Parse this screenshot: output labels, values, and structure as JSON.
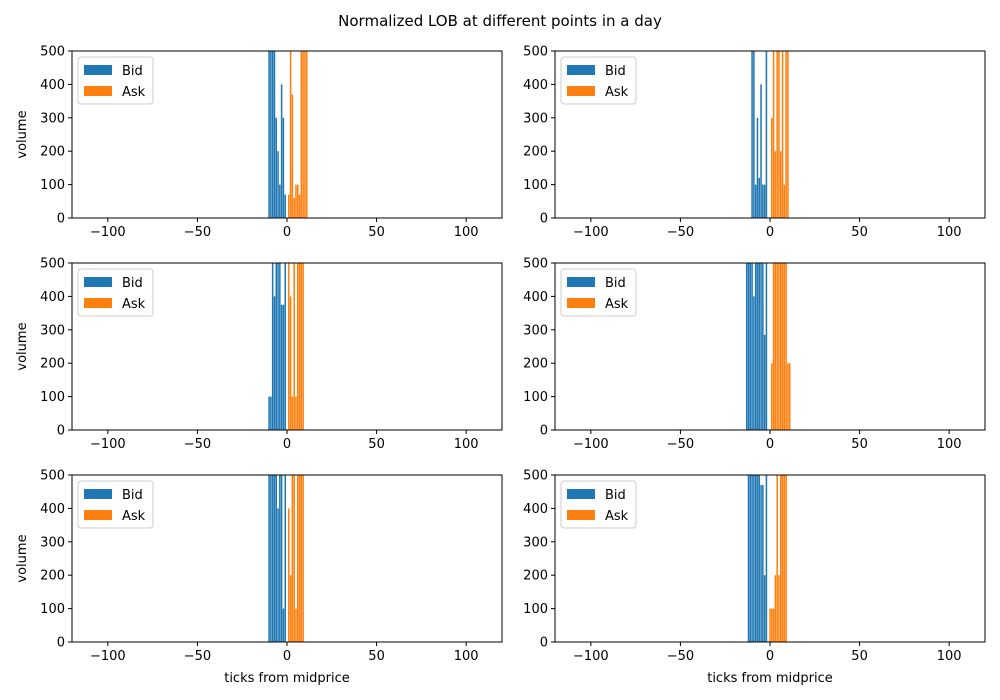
{
  "suptitle": "Normalized LOB at different points in a day",
  "colors": {
    "bid": "#1f77b4",
    "ask": "#ff7f0e"
  },
  "chart_data": [
    {
      "type": "bar",
      "xlabel": "",
      "ylabel": "volume",
      "xlim": [
        -120,
        120
      ],
      "ylim": [
        0,
        500
      ],
      "xticks": [
        -100,
        -50,
        0,
        50,
        100
      ],
      "yticks": [
        0,
        100,
        200,
        300,
        400,
        500
      ],
      "legend": "top-left",
      "series": [
        {
          "name": "Bid",
          "x": [
            -10,
            -9,
            -8,
            -7,
            -6,
            -5,
            -4,
            -3,
            -2,
            -1
          ],
          "values": [
            500,
            500,
            500,
            500,
            300,
            200,
            100,
            400,
            300,
            70
          ]
        },
        {
          "name": "Ask",
          "x": [
            1,
            2,
            3,
            4,
            5,
            6,
            7,
            8,
            9,
            10,
            11
          ],
          "values": [
            70,
            500,
            370,
            60,
            100,
            100,
            70,
            500,
            500,
            500,
            500
          ]
        }
      ]
    },
    {
      "type": "bar",
      "xlabel": "",
      "ylabel": "",
      "xlim": [
        -120,
        120
      ],
      "ylim": [
        0,
        500
      ],
      "xticks": [
        -100,
        -50,
        0,
        50,
        100
      ],
      "yticks": [
        0,
        100,
        200,
        300,
        400,
        500
      ],
      "legend": "top-left",
      "series": [
        {
          "name": "Bid",
          "x": [
            -10,
            -9,
            -8,
            -7,
            -6,
            -5,
            -4,
            -3,
            -2
          ],
          "values": [
            500,
            500,
            100,
            300,
            120,
            400,
            100,
            100,
            500
          ]
        },
        {
          "name": "Ask",
          "x": [
            1,
            2,
            3,
            4,
            5,
            6,
            7,
            8,
            9,
            10
          ],
          "values": [
            300,
            500,
            200,
            500,
            500,
            200,
            500,
            100,
            500,
            500
          ]
        }
      ]
    },
    {
      "type": "bar",
      "xlabel": "",
      "ylabel": "volume",
      "xlim": [
        -120,
        120
      ],
      "ylim": [
        0,
        500
      ],
      "xticks": [
        -100,
        -50,
        0,
        50,
        100
      ],
      "yticks": [
        0,
        100,
        200,
        300,
        400,
        500
      ],
      "legend": "top-left",
      "series": [
        {
          "name": "Bid",
          "x": [
            -10,
            -9,
            -8,
            -7,
            -6,
            -5,
            -4,
            -3,
            -2,
            -1
          ],
          "values": [
            100,
            100,
            500,
            400,
            500,
            500,
            500,
            375,
            375,
            500
          ]
        },
        {
          "name": "Ask",
          "x": [
            1,
            2,
            3,
            4,
            5,
            6,
            7,
            8,
            9
          ],
          "values": [
            500,
            400,
            100,
            500,
            100,
            500,
            500,
            500,
            500
          ]
        }
      ]
    },
    {
      "type": "bar",
      "xlabel": "",
      "ylabel": "",
      "xlim": [
        -120,
        120
      ],
      "ylim": [
        0,
        500
      ],
      "xticks": [
        -100,
        -50,
        0,
        50,
        100
      ],
      "yticks": [
        0,
        100,
        200,
        300,
        400,
        500
      ],
      "legend": "top-left",
      "series": [
        {
          "name": "Bid",
          "x": [
            -13,
            -12,
            -11,
            -10,
            -9,
            -8,
            -7,
            -6,
            -5,
            -4,
            -3,
            -2
          ],
          "values": [
            500,
            500,
            500,
            500,
            400,
            500,
            500,
            500,
            500,
            500,
            285,
            500
          ]
        },
        {
          "name": "Ask",
          "x": [
            1,
            2,
            3,
            4,
            5,
            6,
            7,
            8,
            9,
            10,
            11
          ],
          "values": [
            200,
            500,
            500,
            500,
            500,
            500,
            500,
            500,
            500,
            200,
            200
          ]
        }
      ]
    },
    {
      "type": "bar",
      "xlabel": "ticks from midprice",
      "ylabel": "volume",
      "xlim": [
        -120,
        120
      ],
      "ylim": [
        0,
        500
      ],
      "xticks": [
        -100,
        -50,
        0,
        50,
        100
      ],
      "yticks": [
        0,
        100,
        200,
        300,
        400,
        500
      ],
      "legend": "top-left",
      "series": [
        {
          "name": "Bid",
          "x": [
            -10,
            -9,
            -8,
            -7,
            -6,
            -5,
            -4,
            -3,
            -2,
            -1
          ],
          "values": [
            500,
            500,
            500,
            500,
            500,
            400,
            500,
            500,
            100,
            500
          ]
        },
        {
          "name": "Ask",
          "x": [
            1,
            2,
            3,
            4,
            5,
            6,
            7,
            8,
            9
          ],
          "values": [
            400,
            200,
            500,
            500,
            100,
            500,
            500,
            500,
            500
          ]
        }
      ]
    },
    {
      "type": "bar",
      "xlabel": "ticks from midprice",
      "ylabel": "",
      "xlim": [
        -120,
        120
      ],
      "ylim": [
        0,
        500
      ],
      "xticks": [
        -100,
        -50,
        0,
        50,
        100
      ],
      "yticks": [
        0,
        100,
        200,
        300,
        400,
        500
      ],
      "legend": "top-left",
      "series": [
        {
          "name": "Bid",
          "x": [
            -12,
            -11,
            -10,
            -9,
            -8,
            -7,
            -6,
            -5,
            -4,
            -3,
            -2
          ],
          "values": [
            500,
            500,
            500,
            500,
            500,
            500,
            500,
            470,
            470,
            200,
            500
          ]
        },
        {
          "name": "Ask",
          "x": [
            0,
            1,
            2,
            3,
            4,
            5,
            6,
            7,
            8,
            9
          ],
          "values": [
            100,
            100,
            100,
            200,
            500,
            200,
            500,
            500,
            500,
            500
          ]
        }
      ]
    }
  ]
}
